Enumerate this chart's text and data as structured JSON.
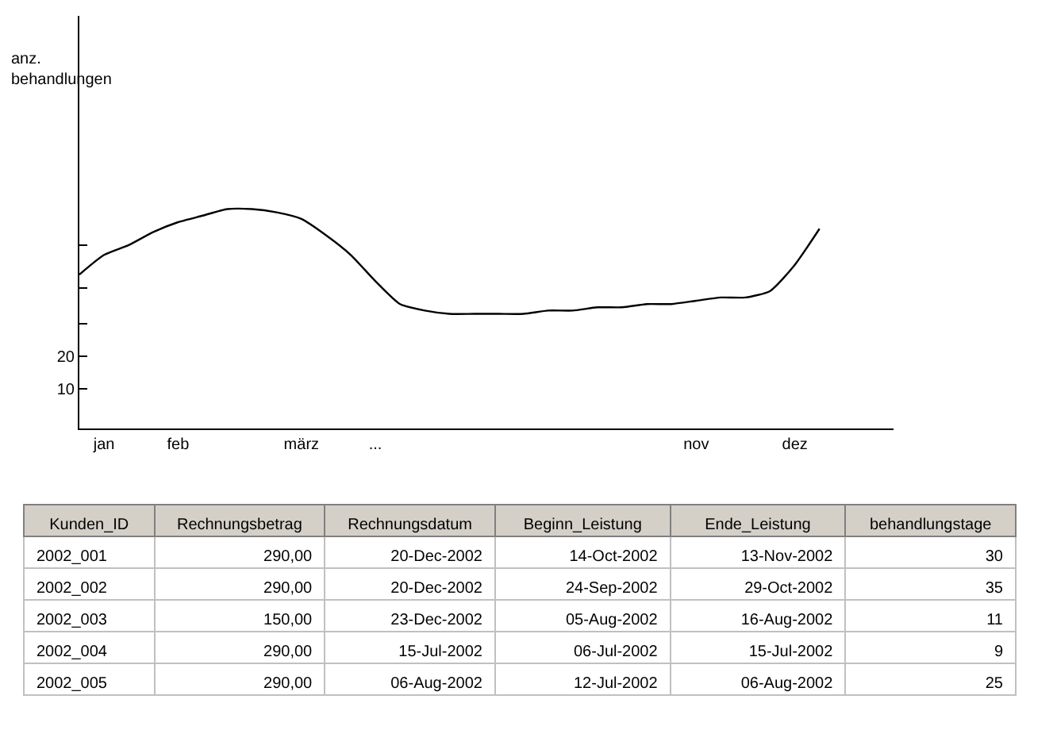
{
  "chart_data": [
    {
      "type": "line",
      "ylabel": "anz.\nbehandlungen",
      "color": "#000000",
      "categories": [
        null,
        "jan",
        null,
        null,
        "feb",
        null,
        null,
        null,
        null,
        "märz",
        null,
        null,
        "...",
        null,
        null,
        null,
        null,
        null,
        null,
        null,
        null,
        null,
        null,
        null,
        null,
        "nov",
        null,
        null,
        null,
        "dez",
        null,
        null,
        null,
        null
      ],
      "values": [
        45,
        51,
        54,
        58,
        61,
        63,
        65,
        65,
        64,
        62,
        57,
        51,
        43,
        36,
        34,
        33,
        33,
        33,
        33,
        34,
        34,
        35,
        35,
        36,
        36,
        37,
        38,
        38,
        40,
        48,
        59,
        null,
        null,
        null
      ],
      "ylim": [
        -2,
        124
      ],
      "yticks": [
        10,
        20,
        {
          "value": 30,
          "label": null
        },
        {
          "value": 41,
          "label": null
        },
        {
          "value": 54,
          "label": null
        }
      ],
      "marker": "none",
      "line_style": "solid"
    },
    {
      "type": "other",
      "categories": [
        "Kunden_ID",
        "Rechnungsbetrag",
        "Rechnungsdatum",
        "Beginn_Leistung",
        "Ende_Leistung",
        "behandlungstage"
      ],
      "cell_labels": [
        [
          "2002_001",
          "290,00",
          "20-Dec-2002",
          "14-Oct-2002",
          "13-Nov-2002",
          "30"
        ],
        [
          "2002_002",
          "290,00",
          "20-Dec-2002",
          "24-Sep-2002",
          "29-Oct-2002",
          "35"
        ],
        [
          "2002_003",
          "150,00",
          "23-Dec-2002",
          "05-Aug-2002",
          "16-Aug-2002",
          "11"
        ],
        [
          "2002_004",
          "290,00",
          "15-Jul-2002",
          "06-Jul-2002",
          "15-Jul-2002",
          "9"
        ],
        [
          "2002_005",
          "290,00",
          "06-Aug-2002",
          "12-Jul-2002",
          "06-Aug-2002",
          "25"
        ]
      ]
    }
  ]
}
